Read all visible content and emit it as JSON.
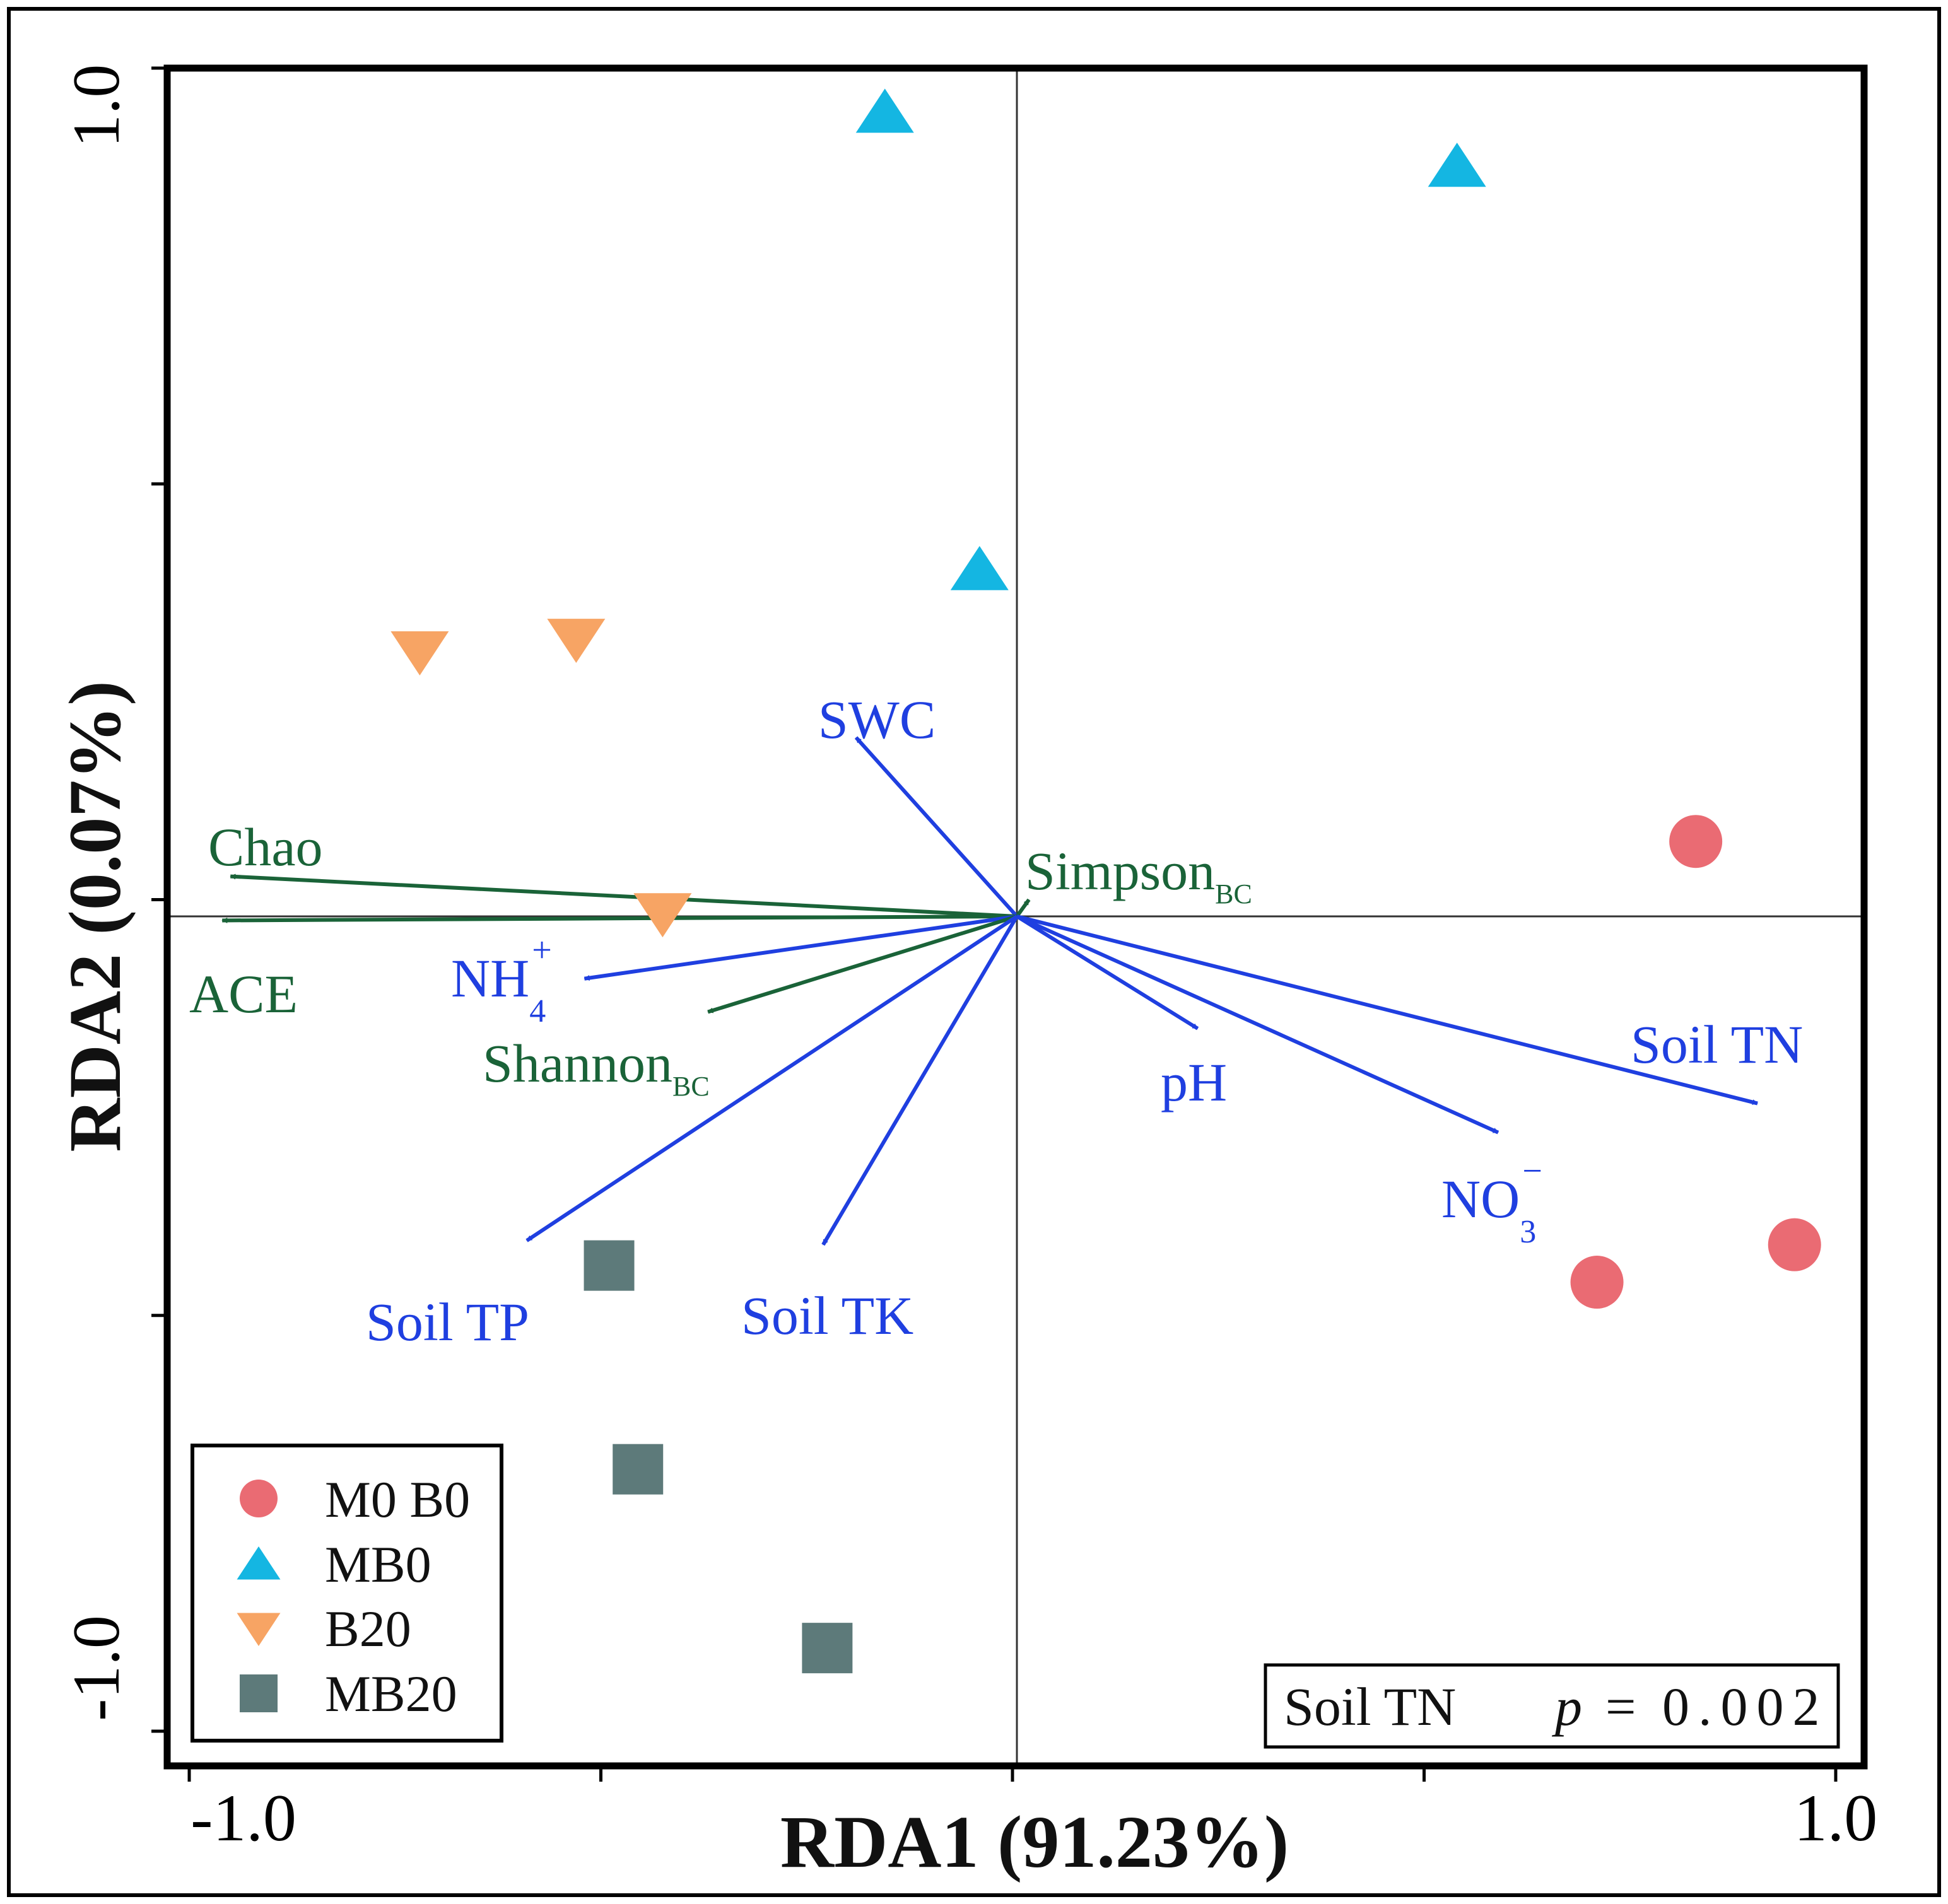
{
  "chart_data": {
    "type": "scatter",
    "subtype": "rda-biplot",
    "title": "",
    "xlabel": "RDA1 (91.23%)",
    "ylabel": "RDA2 (0.07%)",
    "xlim": [
      -1.0,
      1.0
    ],
    "ylim": [
      -1.0,
      1.0
    ],
    "xticks": [
      -1.0,
      -0.5,
      0.0,
      0.5,
      1.0
    ],
    "yticks": [
      -1.0,
      -0.5,
      0.0,
      0.5,
      1.0
    ],
    "xtick_labels": [
      "-1.0",
      "",
      "",
      "",
      "1.0"
    ],
    "ytick_labels": [
      "-1.0",
      "",
      "",
      "",
      "1.0"
    ],
    "grid": false,
    "zero_lines": true,
    "legend_position": "bottom-left",
    "legend": [
      {
        "label": "M0 B0",
        "marker": "circle",
        "color": "#ea6b73"
      },
      {
        "label": "MB0",
        "marker": "triangle-up",
        "color": "#14b6e2"
      },
      {
        "label": "B20",
        "marker": "triangle-down",
        "color": "#f7a464"
      },
      {
        "label": "MB20",
        "marker": "square",
        "color": "#5d7a7a"
      }
    ],
    "series": [
      {
        "name": "M0 B0",
        "marker": "circle",
        "color": "#ea6b73",
        "points": [
          [
            0.83,
            0.07
          ],
          [
            0.71,
            -0.46
          ],
          [
            0.95,
            -0.415
          ]
        ]
      },
      {
        "name": "MB0",
        "marker": "triangle-up",
        "color": "#14b6e2",
        "points": [
          [
            -0.155,
            0.945
          ],
          [
            0.54,
            0.88
          ],
          [
            -0.04,
            0.395
          ]
        ]
      },
      {
        "name": "B20",
        "marker": "triangle-down",
        "color": "#f7a464",
        "points": [
          [
            -0.72,
            0.3
          ],
          [
            -0.53,
            0.315
          ],
          [
            -0.425,
            -0.015
          ]
        ]
      },
      {
        "name": "MB20",
        "marker": "square",
        "color": "#5d7a7a",
        "points": [
          [
            -0.49,
            -0.44
          ],
          [
            -0.455,
            -0.685
          ],
          [
            -0.225,
            -0.9
          ]
        ]
      }
    ],
    "vectors": [
      {
        "name": "SWC",
        "label": "SWC",
        "sub": "",
        "sup": "",
        "x": -0.19,
        "y": 0.195,
        "color": "#1f3fe0"
      },
      {
        "name": "Chao",
        "label": "Chao",
        "sub": "",
        "sup": "",
        "x": -0.95,
        "y": 0.028,
        "color": "#1a6338"
      },
      {
        "name": "ACE",
        "label": "ACE",
        "sub": "",
        "sup": "",
        "x": -0.96,
        "y": -0.025,
        "color": "#1a6338"
      },
      {
        "name": "SimpsonBC",
        "label": "Simpson",
        "sub": "BC",
        "sup": "",
        "x": 0.02,
        "y": 0.0,
        "color": "#1a6338"
      },
      {
        "name": "NH4+",
        "label": "NH",
        "sub": "4",
        "sup": "+",
        "x": -0.52,
        "y": -0.095,
        "color": "#1f3fe0"
      },
      {
        "name": "ShannonBC",
        "label": "Shannon",
        "sub": "BC",
        "sup": "",
        "x": -0.37,
        "y": -0.135,
        "color": "#1a6338"
      },
      {
        "name": "pH",
        "label": "pH",
        "sub": "",
        "sup": "",
        "x": 0.225,
        "y": -0.155,
        "color": "#1f3fe0"
      },
      {
        "name": "Soil TN",
        "label": "Soil TN",
        "sub": "",
        "sup": "",
        "x": 0.905,
        "y": -0.245,
        "color": "#1f3fe0"
      },
      {
        "name": "NO3-",
        "label": "NO",
        "sub": "3",
        "sup": "−",
        "x": 0.59,
        "y": -0.28,
        "color": "#1f3fe0"
      },
      {
        "name": "Soil TP",
        "label": "Soil TP",
        "sub": "",
        "sup": "",
        "x": -0.59,
        "y": -0.41,
        "color": "#1f3fe0"
      },
      {
        "name": "Soil TK",
        "label": "Soil TK",
        "sub": "",
        "sup": "",
        "x": -0.23,
        "y": -0.415,
        "color": "#1f3fe0"
      }
    ],
    "annotation": {
      "variable": "Soil TN",
      "p_symbol": "p",
      "p_eq": "=",
      "p_value": "0.002"
    }
  }
}
